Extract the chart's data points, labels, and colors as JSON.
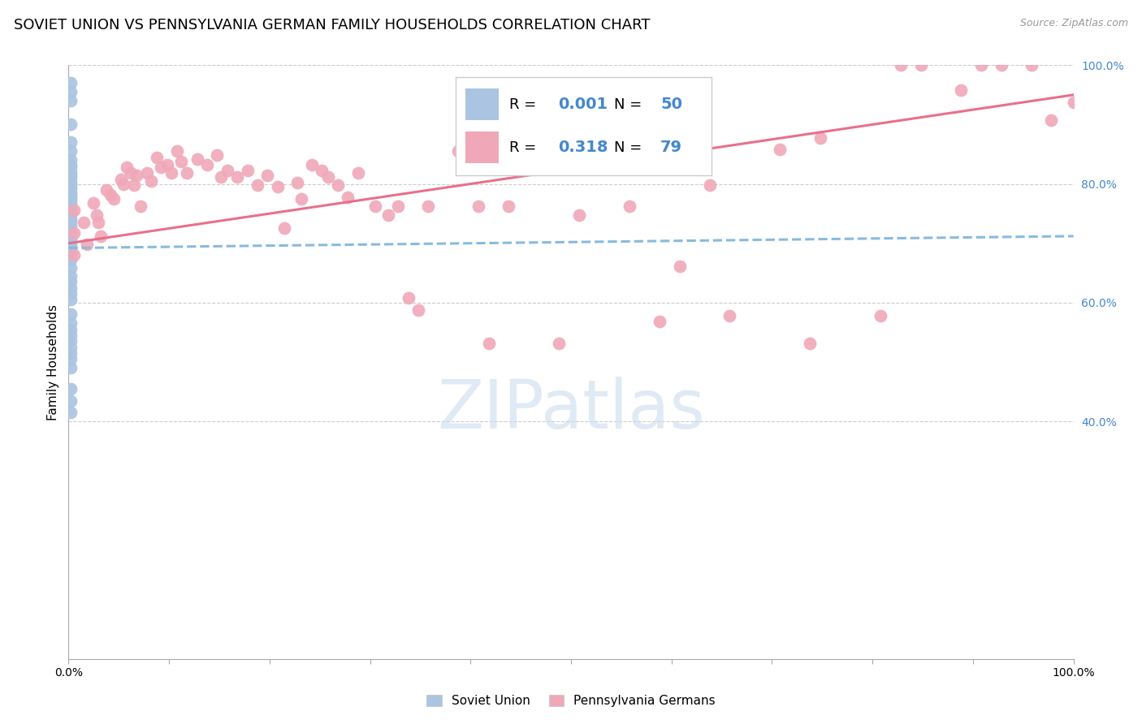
{
  "title": "SOVIET UNION VS PENNSYLVANIA GERMAN FAMILY HOUSEHOLDS CORRELATION CHART",
  "source": "Source: ZipAtlas.com",
  "ylabel": "Family Households",
  "xlim": [
    0.0,
    1.0
  ],
  "ylim": [
    0.0,
    1.0
  ],
  "yticks_right": [
    0.4,
    0.6,
    0.8,
    1.0
  ],
  "ytick_labels_right": [
    "40.0%",
    "60.0%",
    "80.0%",
    "100.0%"
  ],
  "legend_blue_r": "0.001",
  "legend_blue_n": "50",
  "legend_pink_r": "0.318",
  "legend_pink_n": "79",
  "blue_color": "#aac4e2",
  "pink_color": "#f0a8b8",
  "blue_line_color": "#88bbdd",
  "pink_line_color": "#e8708a",
  "watermark_color": "#ccdcee",
  "background_color": "#ffffff",
  "grid_color": "#cccccc",
  "title_fontsize": 13,
  "axis_label_fontsize": 11,
  "tick_fontsize": 10,
  "watermark_fontsize": 60,
  "blue_scatter_x": [
    0.002,
    0.002,
    0.002,
    0.002,
    0.002,
    0.002,
    0.002,
    0.002,
    0.002,
    0.002,
    0.002,
    0.002,
    0.002,
    0.002,
    0.002,
    0.002,
    0.002,
    0.002,
    0.002,
    0.002,
    0.002,
    0.002,
    0.002,
    0.002,
    0.002,
    0.002,
    0.002,
    0.002,
    0.002,
    0.002,
    0.002,
    0.002,
    0.002,
    0.002,
    0.002,
    0.002,
    0.002,
    0.002,
    0.002,
    0.002,
    0.002,
    0.002,
    0.002,
    0.002,
    0.002,
    0.002,
    0.002,
    0.002,
    0.002,
    0.002
  ],
  "blue_scatter_y": [
    0.97,
    0.955,
    0.94,
    0.9,
    0.87,
    0.855,
    0.84,
    0.832,
    0.828,
    0.82,
    0.815,
    0.81,
    0.802,
    0.798,
    0.792,
    0.786,
    0.78,
    0.775,
    0.768,
    0.762,
    0.756,
    0.75,
    0.742,
    0.736,
    0.73,
    0.718,
    0.712,
    0.705,
    0.698,
    0.692,
    0.685,
    0.672,
    0.658,
    0.645,
    0.635,
    0.625,
    0.615,
    0.605,
    0.58,
    0.565,
    0.555,
    0.545,
    0.535,
    0.525,
    0.515,
    0.505,
    0.49,
    0.455,
    0.435,
    0.415
  ],
  "pink_scatter_x": [
    0.005,
    0.005,
    0.005,
    0.015,
    0.018,
    0.025,
    0.028,
    0.03,
    0.032,
    0.038,
    0.042,
    0.045,
    0.052,
    0.055,
    0.058,
    0.062,
    0.065,
    0.068,
    0.072,
    0.078,
    0.082,
    0.088,
    0.092,
    0.098,
    0.102,
    0.108,
    0.112,
    0.118,
    0.128,
    0.138,
    0.148,
    0.152,
    0.158,
    0.168,
    0.178,
    0.188,
    0.198,
    0.208,
    0.215,
    0.228,
    0.232,
    0.242,
    0.252,
    0.258,
    0.268,
    0.278,
    0.288,
    0.305,
    0.318,
    0.328,
    0.338,
    0.348,
    0.358,
    0.388,
    0.408,
    0.418,
    0.438,
    0.448,
    0.478,
    0.488,
    0.508,
    0.548,
    0.558,
    0.588,
    0.608,
    0.638,
    0.658,
    0.708,
    0.738,
    0.748,
    0.808,
    0.828,
    0.848,
    0.888,
    0.908,
    0.928,
    0.958,
    0.978,
    1.0
  ],
  "pink_scatter_y": [
    0.755,
    0.718,
    0.68,
    0.735,
    0.698,
    0.768,
    0.748,
    0.735,
    0.712,
    0.79,
    0.782,
    0.775,
    0.808,
    0.8,
    0.828,
    0.818,
    0.798,
    0.815,
    0.762,
    0.818,
    0.805,
    0.845,
    0.828,
    0.832,
    0.818,
    0.855,
    0.838,
    0.818,
    0.842,
    0.832,
    0.848,
    0.812,
    0.822,
    0.812,
    0.822,
    0.798,
    0.815,
    0.795,
    0.725,
    0.802,
    0.775,
    0.832,
    0.822,
    0.812,
    0.798,
    0.778,
    0.818,
    0.762,
    0.748,
    0.762,
    0.608,
    0.588,
    0.762,
    0.855,
    0.762,
    0.532,
    0.762,
    0.855,
    0.848,
    0.532,
    0.748,
    0.858,
    0.762,
    0.568,
    0.662,
    0.798,
    0.578,
    0.858,
    0.532,
    0.878,
    0.578,
    1.0,
    1.0,
    0.958,
    1.0,
    1.0,
    1.0,
    0.908,
    0.938
  ],
  "blue_trendline_x": [
    0.0,
    1.0
  ],
  "blue_trendline_y": [
    0.692,
    0.712
  ],
  "pink_trendline_x": [
    0.0,
    1.0
  ],
  "pink_trendline_y": [
    0.7,
    0.95
  ]
}
